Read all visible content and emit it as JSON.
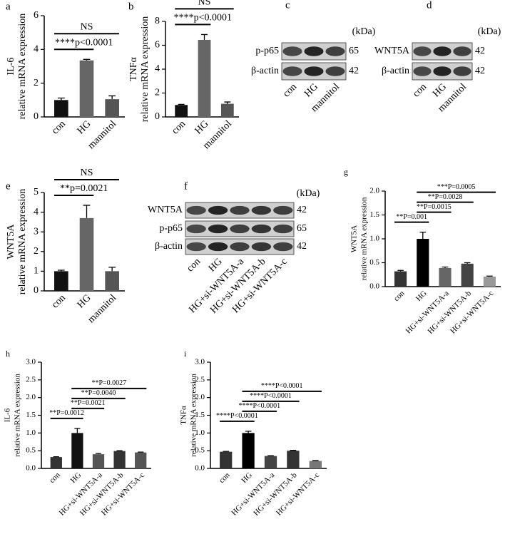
{
  "chart_data": [
    {
      "type": "bar",
      "panel_label": "a",
      "ylabel": [
        "IL-6",
        "relative mRNA expression"
      ],
      "categories": [
        "con",
        "HG",
        "mannitol"
      ],
      "values": [
        1.0,
        3.35,
        1.05
      ],
      "errors": [
        0.12,
        0.06,
        0.2
      ],
      "colors": [
        "#111111",
        "#666666",
        "#555555"
      ],
      "ylim": [
        0,
        6
      ],
      "yticks": [
        0,
        2,
        4,
        6
      ],
      "annotations": [
        {
          "label": "****p<0.0001",
          "between": [
            "con",
            "HG"
          ]
        },
        {
          "label": "NS",
          "between": [
            "con",
            "mannitol"
          ]
        }
      ]
    },
    {
      "type": "bar",
      "panel_label": "b",
      "ylabel": [
        "TNFα",
        "relative mRNA expression"
      ],
      "categories": [
        "con",
        "HG",
        "mannitol"
      ],
      "values": [
        1.0,
        6.45,
        1.1
      ],
      "errors": [
        0.05,
        0.45,
        0.15
      ],
      "colors": [
        "#111111",
        "#666666",
        "#555555"
      ],
      "ylim": [
        0,
        8
      ],
      "yticks": [
        0,
        2,
        4,
        6,
        8
      ],
      "annotations": [
        {
          "label": "****p<0.0001",
          "between": [
            "con",
            "HG"
          ]
        },
        {
          "label": "NS",
          "between": [
            "con",
            "mannitol"
          ]
        }
      ]
    },
    {
      "type": "bar",
      "panel_label": "e",
      "ylabel": [
        "WNT5A",
        "relative mRNA expression"
      ],
      "categories": [
        "con",
        "HG",
        "mannitol"
      ],
      "values": [
        1.0,
        3.7,
        1.0
      ],
      "errors": [
        0.05,
        0.65,
        0.2
      ],
      "colors": [
        "#111111",
        "#666666",
        "#555555"
      ],
      "ylim": [
        0,
        5
      ],
      "yticks": [
        0,
        1,
        2,
        3,
        4,
        5
      ],
      "annotations": [
        {
          "label": "**p=0.0021",
          "between": [
            "con",
            "HG"
          ]
        },
        {
          "label": "NS",
          "between": [
            "con",
            "mannitol"
          ]
        }
      ]
    },
    {
      "type": "bar",
      "panel_label": "g",
      "ylabel": [
        "WNT5A",
        "relative mRNA expression"
      ],
      "categories": [
        "con",
        "HG",
        "HG+si-WNT5A-a",
        "HG+si-WNT5A-b",
        "HG+si-WNT5A-c"
      ],
      "values": [
        0.32,
        1.0,
        0.39,
        0.48,
        0.21
      ],
      "errors": [
        0.02,
        0.14,
        0.02,
        0.02,
        0.01
      ],
      "colors": [
        "#333333",
        "#000000",
        "#666666",
        "#444444",
        "#999999"
      ],
      "ylim": [
        0,
        2
      ],
      "yticks": [
        {
          "value": 0,
          "label": "0.0"
        },
        0.5,
        {
          "value": 1,
          "label": "1.0"
        },
        1.5,
        {
          "value": 2,
          "label": "2.0"
        }
      ],
      "annotations": [
        {
          "label": "**P=0.001",
          "between": [
            "con",
            "HG"
          ]
        },
        {
          "label": "**P=0.0015",
          "between": [
            "HG",
            "HG+si-WNT5A-a"
          ]
        },
        {
          "label": "**P=0.0028",
          "between": [
            "HG",
            "HG+si-WNT5A-b"
          ]
        },
        {
          "label": "***P=0.0005",
          "between": [
            "HG",
            "HG+si-WNT5A-c"
          ]
        }
      ]
    },
    {
      "type": "bar",
      "panel_label": "h",
      "ylabel": [
        "IL-6",
        "relative mRNA expression"
      ],
      "categories": [
        "con",
        "HG",
        "HG+si-WNT5A-a",
        "HG+si-WNT5A-b",
        "HG+si-WNT5A-c"
      ],
      "values": [
        0.32,
        1.0,
        0.4,
        0.49,
        0.45
      ],
      "errors": [
        0.01,
        0.13,
        0.02,
        0.01,
        0.01
      ],
      "colors": [
        "#333333",
        "#111111",
        "#555555",
        "#333333",
        "#555555"
      ],
      "ylim": [
        0,
        3
      ],
      "yticks": [
        {
          "value": 0,
          "label": "0.0"
        },
        0.5,
        {
          "value": 1,
          "label": "1.0"
        },
        1.5,
        {
          "value": 2,
          "label": "2.0"
        },
        2.5,
        {
          "value": 3,
          "label": "3.0"
        }
      ],
      "annotations": [
        {
          "label": "**P=0.0012",
          "between": [
            "con",
            "HG"
          ]
        },
        {
          "label": "**P=0.0021",
          "between": [
            "HG",
            "HG+si-WNT5A-a"
          ]
        },
        {
          "label": "**P=0.0040",
          "between": [
            "HG",
            "HG+si-WNT5A-b"
          ]
        },
        {
          "label": "**P=0.0027",
          "between": [
            "HG",
            "HG+si-WNT5A-c"
          ]
        }
      ]
    },
    {
      "type": "bar",
      "panel_label": "i",
      "ylabel": [
        "TNFα",
        "relative mRNA expression"
      ],
      "categories": [
        "con",
        "HG",
        "HG+si-WNT5A-a",
        "HG+si-WNT5A-b",
        "HG+si-WNT5A-c"
      ],
      "values": [
        0.47,
        1.0,
        0.35,
        0.5,
        0.21
      ],
      "errors": [
        0.01,
        0.05,
        0.01,
        0.01,
        0.01
      ],
      "colors": [
        "#333333",
        "#000000",
        "#444444",
        "#333333",
        "#777777"
      ],
      "ylim": [
        0,
        3
      ],
      "yticks": [
        {
          "value": 0,
          "label": "0.0"
        },
        0.5,
        {
          "value": 1,
          "label": "1.0"
        },
        1.5,
        {
          "value": 2,
          "label": "2.0"
        },
        2.5,
        {
          "value": 3,
          "label": "3.0"
        }
      ],
      "annotations": [
        {
          "label": "****P<0.0001",
          "between": [
            "con",
            "HG"
          ]
        },
        {
          "label": "****P<0.0001",
          "between": [
            "HG",
            "HG+si-WNT5A-a"
          ]
        },
        {
          "label": "****P<0.0001",
          "between": [
            "HG",
            "HG+si-WNT5A-b"
          ]
        },
        {
          "label": "****P<0.0001",
          "between": [
            "HG",
            "HG+si-WNT5A-c"
          ]
        }
      ]
    }
  ],
  "blots": [
    {
      "panel_label": "c",
      "kda_label": "(kDa)",
      "rows": [
        {
          "name": "p-p65",
          "kda": 65
        },
        {
          "name": "β-actin",
          "kda": 42
        }
      ],
      "lanes": [
        "con",
        "HG",
        "mannitol"
      ]
    },
    {
      "panel_label": "d",
      "kda_label": "(kDa)",
      "rows": [
        {
          "name": "WNT5A",
          "kda": 42
        },
        {
          "name": "β-actin",
          "kda": 42
        }
      ],
      "lanes": [
        "con",
        "HG",
        "mannitol"
      ]
    },
    {
      "panel_label": "f",
      "kda_label": "(kDa)",
      "rows": [
        {
          "name": "WNT5A",
          "kda": 42
        },
        {
          "name": "p-p65",
          "kda": 65
        },
        {
          "name": "β-actin",
          "kda": 42
        }
      ],
      "lanes": [
        "con",
        "HG",
        "HG+si-WNT5A-a",
        "HG+si-WNT5A-b",
        "HG+si-WNT5A-c"
      ]
    }
  ]
}
